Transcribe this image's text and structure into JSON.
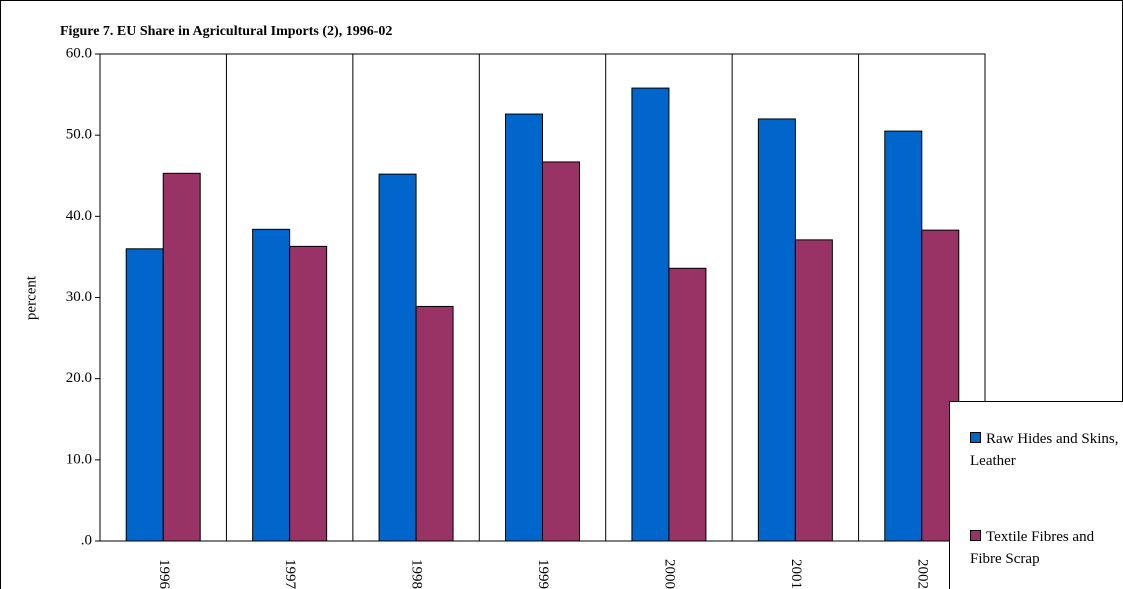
{
  "chart_data": {
    "type": "bar",
    "title": "Figure 7. EU Share in Agricultural Imports (2), 1996-02",
    "y_label": "percent",
    "categories": [
      "1996",
      "1997",
      "1998",
      "1999",
      "2000",
      "2001",
      "2002"
    ],
    "series": [
      {
        "name": "Raw Hides and Skins, Leather",
        "color": "#0066cc",
        "values": [
          36.0,
          38.4,
          45.2,
          52.6,
          55.8,
          52.0,
          50.5
        ]
      },
      {
        "name": "Textile Fibres and Fibre Scrap",
        "color": "#993366",
        "values": [
          45.3,
          36.3,
          28.9,
          46.7,
          33.6,
          37.1,
          38.3
        ]
      }
    ],
    "ylim": [
      0,
      60
    ],
    "yticks": [
      {
        "value": 0,
        "label": ".0"
      },
      {
        "value": 10,
        "label": "10.0"
      },
      {
        "value": 20,
        "label": "20.0"
      },
      {
        "value": 30,
        "label": "30.0"
      },
      {
        "value": 40,
        "label": "40.0"
      },
      {
        "value": 50,
        "label": "50.0"
      },
      {
        "value": 60,
        "label": "60.0"
      }
    ]
  }
}
